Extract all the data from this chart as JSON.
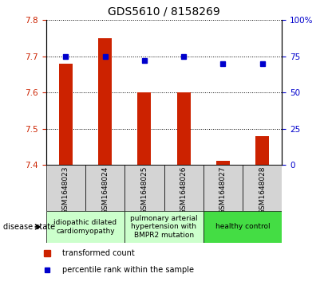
{
  "title": "GDS5610 / 8158269",
  "samples": [
    "GSM1648023",
    "GSM1648024",
    "GSM1648025",
    "GSM1648026",
    "GSM1648027",
    "GSM1648028"
  ],
  "transformed_count": [
    7.68,
    7.75,
    7.6,
    7.6,
    7.41,
    7.48
  ],
  "percentile_rank": [
    75,
    75,
    72,
    75,
    70,
    70
  ],
  "ylim_left": [
    7.4,
    7.8
  ],
  "ylim_right": [
    0,
    100
  ],
  "yticks_left": [
    7.4,
    7.5,
    7.6,
    7.7,
    7.8
  ],
  "yticks_right": [
    0,
    25,
    50,
    75,
    100
  ],
  "ytick_labels_right": [
    "0",
    "25",
    "50",
    "75",
    "100%"
  ],
  "bar_color": "#cc2200",
  "marker_color": "#0000cc",
  "bar_width": 0.35,
  "disease_groups": [
    {
      "label": "idiopathic dilated\ncardiomyopathy",
      "indices": [
        0,
        1
      ],
      "color": "#ccffcc"
    },
    {
      "label": "pulmonary arterial\nhypertension with\nBMPR2 mutation",
      "indices": [
        2,
        3
      ],
      "color": "#ccffcc"
    },
    {
      "label": "healthy control",
      "indices": [
        4,
        5
      ],
      "color": "#44dd44"
    }
  ],
  "legend_bar_label": "transformed count",
  "legend_marker_label": "percentile rank within the sample",
  "xlabel_disease": "disease state",
  "title_fontsize": 10,
  "tick_fontsize": 7.5,
  "sample_fontsize": 6.5,
  "disease_fontsize": 6.5,
  "legend_fontsize": 7
}
